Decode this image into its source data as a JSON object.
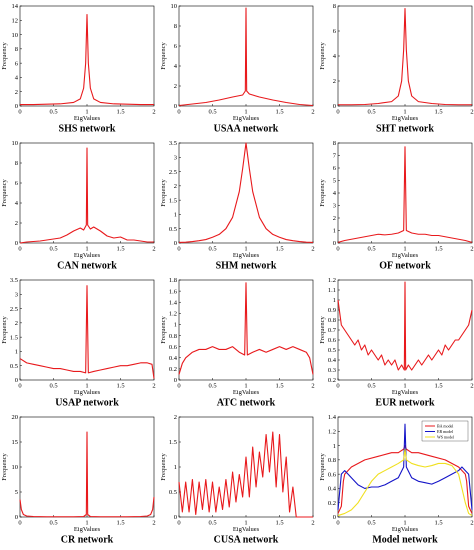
{
  "chart_data": [
    {
      "type": "line",
      "title": "SHS network",
      "xlabel": "EigValues",
      "ylabel": "Frequency",
      "xlim": [
        0,
        2
      ],
      "ylim": [
        0,
        14
      ],
      "xticks": [
        "0",
        "0.5",
        "1",
        "1.5",
        "2"
      ],
      "yticks": [
        "0",
        "2",
        "4",
        "6",
        "8",
        "10",
        "12",
        "14"
      ],
      "series": [
        {
          "color": "#e8191c",
          "x": [
            0,
            0.2,
            0.4,
            0.6,
            0.8,
            0.9,
            0.95,
            0.98,
            1,
            1.02,
            1.05,
            1.1,
            1.2,
            1.4,
            1.6,
            1.8,
            2
          ],
          "y": [
            0.2,
            0.2,
            0.25,
            0.3,
            0.5,
            1.0,
            2.5,
            6,
            12.8,
            6,
            2.5,
            1.0,
            0.5,
            0.3,
            0.25,
            0.2,
            0.2
          ]
        }
      ]
    },
    {
      "type": "line",
      "title": "USAA network",
      "xlabel": "EigValues",
      "ylabel": "Frequency",
      "xlim": [
        0,
        2
      ],
      "ylim": [
        0,
        10
      ],
      "xticks": [
        "0",
        "0.5",
        "1",
        "1.5",
        "2"
      ],
      "yticks": [
        "0",
        "2",
        "4",
        "6",
        "8",
        "10"
      ],
      "series": [
        {
          "color": "#e8191c",
          "x": [
            0,
            0.2,
            0.4,
            0.6,
            0.8,
            0.95,
            0.99,
            1,
            1.01,
            1.05,
            1.2,
            1.4,
            1.6,
            1.8,
            2
          ],
          "y": [
            0.05,
            0.2,
            0.35,
            0.6,
            0.9,
            1.1,
            1.5,
            9.8,
            1.5,
            1.2,
            0.9,
            0.6,
            0.35,
            0.15,
            0.05
          ]
        }
      ]
    },
    {
      "type": "line",
      "title": "SHT network",
      "xlabel": "EigValues",
      "ylabel": "Frequency",
      "xlim": [
        0,
        2
      ],
      "ylim": [
        0,
        8
      ],
      "xticks": [
        "0",
        "0.5",
        "1",
        "1.5",
        "2"
      ],
      "yticks": [
        "0",
        "2",
        "4",
        "6",
        "8"
      ],
      "series": [
        {
          "color": "#e8191c",
          "x": [
            0,
            0.2,
            0.4,
            0.6,
            0.8,
            0.9,
            0.95,
            0.98,
            1,
            1.02,
            1.05,
            1.1,
            1.2,
            1.4,
            1.6,
            1.8,
            2
          ],
          "y": [
            0.1,
            0.1,
            0.12,
            0.2,
            0.35,
            0.8,
            2.0,
            4.5,
            7.8,
            4.5,
            2.0,
            0.8,
            0.35,
            0.2,
            0.12,
            0.1,
            0.1
          ]
        }
      ]
    },
    {
      "type": "line",
      "title": "CAN network",
      "xlabel": "EigValues",
      "ylabel": "Frequency",
      "xlim": [
        0,
        2
      ],
      "ylim": [
        0,
        10
      ],
      "xticks": [
        "0",
        "0.5",
        "1",
        "1.5",
        "2"
      ],
      "yticks": [
        "0",
        "2",
        "4",
        "6",
        "8",
        "10"
      ],
      "series": [
        {
          "color": "#e8191c",
          "x": [
            0,
            0.1,
            0.2,
            0.3,
            0.4,
            0.5,
            0.6,
            0.7,
            0.8,
            0.9,
            0.95,
            0.99,
            1,
            1.01,
            1.05,
            1.1,
            1.2,
            1.3,
            1.4,
            1.5,
            1.6,
            1.7,
            1.8,
            1.9,
            2
          ],
          "y": [
            0.0,
            0.1,
            0.15,
            0.2,
            0.3,
            0.4,
            0.5,
            0.8,
            1.2,
            1.5,
            1.3,
            1.8,
            9.5,
            1.8,
            1.4,
            1.6,
            1.2,
            0.7,
            0.5,
            0.6,
            0.3,
            0.3,
            0.2,
            0.1,
            0.1
          ]
        }
      ]
    },
    {
      "type": "line",
      "title": "SHM network",
      "xlabel": "EigValues",
      "ylabel": "Frequency",
      "xlim": [
        0,
        2
      ],
      "ylim": [
        0,
        3.5
      ],
      "xticks": [
        "0",
        "0.5",
        "1",
        "1.5",
        "2"
      ],
      "yticks": [
        "0",
        "0.5",
        "1",
        "1.5",
        "2",
        "2.5",
        "3",
        "3.5"
      ],
      "series": [
        {
          "color": "#e8191c",
          "x": [
            0,
            0.1,
            0.2,
            0.3,
            0.4,
            0.5,
            0.6,
            0.7,
            0.8,
            0.9,
            0.95,
            1,
            1.05,
            1.1,
            1.2,
            1.3,
            1.4,
            1.5,
            1.6,
            1.7,
            1.8,
            1.9,
            2
          ],
          "y": [
            0.02,
            0.03,
            0.05,
            0.08,
            0.12,
            0.2,
            0.3,
            0.5,
            0.9,
            1.8,
            2.6,
            3.5,
            2.6,
            1.8,
            0.9,
            0.5,
            0.3,
            0.2,
            0.12,
            0.08,
            0.05,
            0.03,
            0.02
          ]
        }
      ]
    },
    {
      "type": "line",
      "title": "OF network",
      "xlabel": "EigValues",
      "ylabel": "Frequency",
      "xlim": [
        0,
        2
      ],
      "ylim": [
        0,
        8
      ],
      "xticks": [
        "0",
        "0.5",
        "1",
        "1.5",
        "2"
      ],
      "yticks": [
        "0",
        "1",
        "2",
        "3",
        "4",
        "5",
        "6",
        "7",
        "8"
      ],
      "series": [
        {
          "color": "#e8191c",
          "x": [
            0,
            0.1,
            0.2,
            0.3,
            0.4,
            0.5,
            0.6,
            0.7,
            0.8,
            0.9,
            0.98,
            1,
            1.02,
            1.1,
            1.2,
            1.3,
            1.4,
            1.5,
            1.6,
            1.7,
            1.8,
            1.9,
            2
          ],
          "y": [
            0.05,
            0.2,
            0.3,
            0.4,
            0.5,
            0.6,
            0.7,
            0.65,
            0.7,
            0.8,
            1.0,
            7.7,
            1.0,
            0.8,
            0.7,
            0.7,
            0.6,
            0.6,
            0.5,
            0.4,
            0.3,
            0.2,
            0.05
          ]
        }
      ]
    },
    {
      "type": "line",
      "title": "USAP network",
      "xlabel": "EigValues",
      "ylabel": "Frequency",
      "xlim": [
        0,
        2
      ],
      "ylim": [
        0,
        3.5
      ],
      "xticks": [
        "0",
        "0.5",
        "1",
        "1.5",
        "2"
      ],
      "yticks": [
        "0",
        "0.5",
        "1",
        "1.5",
        "2",
        "2.5",
        "3",
        "3.5"
      ],
      "series": [
        {
          "color": "#e8191c",
          "x": [
            0,
            0.1,
            0.2,
            0.3,
            0.4,
            0.5,
            0.6,
            0.7,
            0.8,
            0.9,
            0.98,
            1,
            1.02,
            1.1,
            1.2,
            1.3,
            1.4,
            1.5,
            1.6,
            1.7,
            1.8,
            1.9,
            1.97,
            2
          ],
          "y": [
            0.75,
            0.6,
            0.55,
            0.5,
            0.45,
            0.4,
            0.4,
            0.35,
            0.3,
            0.3,
            0.25,
            3.3,
            0.25,
            0.3,
            0.35,
            0.4,
            0.45,
            0.5,
            0.5,
            0.55,
            0.6,
            0.6,
            0.55,
            0.05
          ]
        }
      ]
    },
    {
      "type": "line",
      "title": "ATC network",
      "xlabel": "EigValues",
      "ylabel": "Frequency",
      "xlim": [
        0,
        2
      ],
      "ylim": [
        0,
        1.8
      ],
      "xticks": [
        "0",
        "0.5",
        "1",
        "1.5",
        "2"
      ],
      "yticks": [
        "0",
        "0.2",
        "0.4",
        "0.6",
        "0.8",
        "1",
        "1.2",
        "1.4",
        "1.6",
        "1.8"
      ],
      "series": [
        {
          "color": "#e8191c",
          "x": [
            0,
            0.05,
            0.1,
            0.2,
            0.3,
            0.4,
            0.5,
            0.6,
            0.7,
            0.8,
            0.9,
            0.98,
            1,
            1.02,
            1.1,
            1.2,
            1.3,
            1.4,
            1.5,
            1.6,
            1.7,
            1.8,
            1.9,
            1.95,
            2
          ],
          "y": [
            0.1,
            0.3,
            0.4,
            0.5,
            0.55,
            0.55,
            0.6,
            0.55,
            0.55,
            0.6,
            0.5,
            0.45,
            1.75,
            0.45,
            0.5,
            0.55,
            0.5,
            0.55,
            0.6,
            0.55,
            0.6,
            0.55,
            0.5,
            0.4,
            0.1
          ]
        }
      ]
    },
    {
      "type": "line",
      "title": "EUR network",
      "xlabel": "EigValues",
      "ylabel": "Frequency",
      "xlim": [
        0,
        2
      ],
      "ylim": [
        0.2,
        1.2
      ],
      "xticks": [
        "0",
        "0.5",
        "1",
        "1.5",
        "2"
      ],
      "yticks": [
        "0.2",
        "0.3",
        "0.4",
        "0.5",
        "0.6",
        "0.7",
        "0.8",
        "0.9",
        "1",
        "1.1",
        "1.2"
      ],
      "series": [
        {
          "color": "#e8191c",
          "x": [
            0,
            0.05,
            0.1,
            0.15,
            0.2,
            0.25,
            0.3,
            0.35,
            0.4,
            0.45,
            0.5,
            0.55,
            0.6,
            0.65,
            0.7,
            0.75,
            0.8,
            0.85,
            0.9,
            0.95,
            0.99,
            1,
            1.01,
            1.05,
            1.1,
            1.15,
            1.2,
            1.25,
            1.3,
            1.35,
            1.4,
            1.45,
            1.5,
            1.55,
            1.6,
            1.65,
            1.7,
            1.75,
            1.8,
            1.85,
            1.9,
            1.95,
            2
          ],
          "y": [
            1.0,
            0.75,
            0.7,
            0.65,
            0.6,
            0.55,
            0.6,
            0.5,
            0.55,
            0.45,
            0.5,
            0.45,
            0.4,
            0.45,
            0.35,
            0.4,
            0.35,
            0.4,
            0.3,
            0.35,
            0.3,
            1.18,
            0.3,
            0.35,
            0.3,
            0.35,
            0.4,
            0.35,
            0.4,
            0.45,
            0.4,
            0.45,
            0.5,
            0.45,
            0.55,
            0.5,
            0.55,
            0.6,
            0.6,
            0.65,
            0.7,
            0.75,
            0.9
          ]
        }
      ]
    },
    {
      "type": "line",
      "title": "CR network",
      "xlabel": "EigValues",
      "ylabel": "Frequency",
      "xlim": [
        0,
        2
      ],
      "ylim": [
        0,
        20
      ],
      "xticks": [
        "0",
        "0.5",
        "1",
        "1.5",
        "2"
      ],
      "yticks": [
        "0",
        "5",
        "10",
        "15",
        "20"
      ],
      "series": [
        {
          "color": "#e8191c",
          "x": [
            0,
            0.02,
            0.05,
            0.1,
            0.2,
            0.4,
            0.6,
            0.8,
            0.95,
            0.99,
            1,
            1.01,
            1.05,
            1.2,
            1.4,
            1.6,
            1.8,
            1.9,
            1.95,
            1.98,
            2
          ],
          "y": [
            3.5,
            1.5,
            0.5,
            0.2,
            0.1,
            0.05,
            0.05,
            0.05,
            0.1,
            0.5,
            17,
            0.5,
            0.1,
            0.05,
            0.05,
            0.05,
            0.1,
            0.2,
            0.5,
            1.5,
            4.0
          ]
        }
      ]
    },
    {
      "type": "line",
      "title": "CUSA network",
      "xlabel": "EigValues",
      "ylabel": "Frequency",
      "xlim": [
        0,
        2
      ],
      "ylim": [
        0,
        2
      ],
      "xticks": [
        "0",
        "0.5",
        "1",
        "1.5",
        "2"
      ],
      "yticks": [
        "0",
        "0.5",
        "1",
        "1.5",
        "2"
      ],
      "series": [
        {
          "color": "#e8191c",
          "x": [
            0,
            0.05,
            0.1,
            0.15,
            0.2,
            0.25,
            0.3,
            0.35,
            0.4,
            0.45,
            0.5,
            0.55,
            0.6,
            0.65,
            0.7,
            0.75,
            0.8,
            0.85,
            0.9,
            0.95,
            1,
            1.05,
            1.1,
            1.15,
            1.2,
            1.25,
            1.3,
            1.35,
            1.4,
            1.45,
            1.5,
            1.55,
            1.6,
            1.65,
            1.7,
            1.75,
            1.8,
            1.85,
            1.9,
            1.95,
            2
          ],
          "y": [
            0.7,
            0.1,
            0.7,
            0.1,
            0.75,
            0.05,
            0.7,
            0.15,
            0.75,
            0.1,
            0.7,
            0.1,
            0.6,
            0.15,
            0.75,
            0.2,
            0.9,
            0.3,
            0.85,
            0.4,
            1.2,
            0.4,
            1.4,
            0.6,
            1.3,
            0.8,
            1.65,
            0.9,
            1.7,
            0.6,
            1.65,
            0.5,
            1.2,
            0.1,
            0.6,
            0,
            0,
            0,
            0,
            0,
            0
          ]
        }
      ]
    },
    {
      "type": "line",
      "title": "Model network",
      "xlabel": "EigValues",
      "ylabel": "Frequency",
      "xlim": [
        0,
        2
      ],
      "ylim": [
        0,
        1.4
      ],
      "xticks": [
        "0",
        "0.5",
        "1",
        "1.5",
        "2"
      ],
      "yticks": [
        "0",
        "0.2",
        "0.4",
        "0.6",
        "0.8",
        "1",
        "1.2",
        "1.4"
      ],
      "legend": {
        "placement": "top-right"
      },
      "series": [
        {
          "name": "BA model",
          "color": "#e8191c",
          "x": [
            0,
            0.05,
            0.08,
            0.1,
            0.2,
            0.4,
            0.6,
            0.8,
            0.9,
            0.98,
            1,
            1.02,
            1.1,
            1.2,
            1.4,
            1.6,
            1.8,
            1.9,
            1.92,
            1.95,
            2
          ],
          "y": [
            0.05,
            0.15,
            0.5,
            0.6,
            0.7,
            0.8,
            0.85,
            0.9,
            0.9,
            0.95,
            1.0,
            0.95,
            0.9,
            0.9,
            0.85,
            0.8,
            0.7,
            0.6,
            0.5,
            0.15,
            0.05
          ]
        },
        {
          "name": "ER model",
          "color": "#1414c8",
          "x": [
            0,
            0.05,
            0.1,
            0.15,
            0.2,
            0.3,
            0.4,
            0.5,
            0.6,
            0.7,
            0.8,
            0.9,
            0.98,
            1,
            1.02,
            1.1,
            1.2,
            1.3,
            1.4,
            1.5,
            1.6,
            1.7,
            1.8,
            1.85,
            1.9,
            1.95,
            2
          ],
          "y": [
            0.1,
            0.6,
            0.65,
            0.6,
            0.55,
            0.45,
            0.4,
            0.42,
            0.42,
            0.45,
            0.5,
            0.55,
            0.7,
            1.3,
            0.7,
            0.55,
            0.5,
            0.48,
            0.46,
            0.5,
            0.55,
            0.6,
            0.65,
            0.7,
            0.65,
            0.6,
            0.1
          ]
        },
        {
          "name": "WS model",
          "color": "#f0e020",
          "x": [
            0,
            0.1,
            0.2,
            0.3,
            0.4,
            0.5,
            0.6,
            0.7,
            0.8,
            0.9,
            0.98,
            1,
            1.02,
            1.1,
            1.2,
            1.3,
            1.4,
            1.5,
            1.6,
            1.7,
            1.8,
            1.85,
            1.9,
            1.95,
            2
          ],
          "y": [
            0.02,
            0.05,
            0.1,
            0.2,
            0.35,
            0.5,
            0.6,
            0.65,
            0.7,
            0.75,
            0.8,
            0.95,
            0.8,
            0.75,
            0.72,
            0.7,
            0.72,
            0.75,
            0.75,
            0.72,
            0.6,
            0.4,
            0.2,
            0.05,
            0.02
          ]
        }
      ]
    }
  ]
}
